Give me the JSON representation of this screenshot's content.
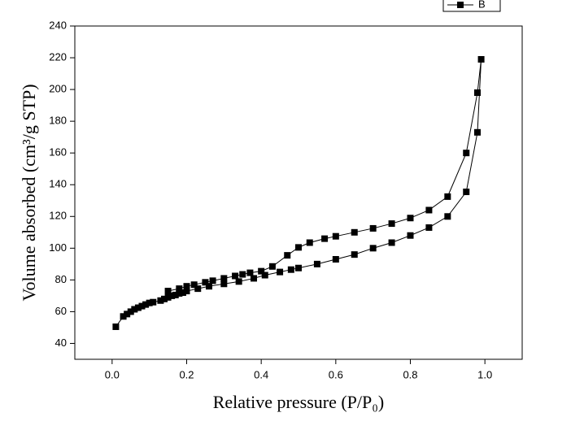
{
  "chart_data": {
    "type": "line",
    "x_label": "Relative pressure (P/P₀)",
    "y_label": "Volume absorbed (cm³/g STP)",
    "xlim": [
      -0.1,
      1.1
    ],
    "ylim": [
      30,
      240
    ],
    "xticks": [
      {
        "value": 0,
        "label": "0.0"
      },
      0.2,
      0.4,
      0.6,
      0.8,
      {
        "value": 1,
        "label": "1.0"
      }
    ],
    "yticks": [
      40,
      60,
      80,
      100,
      120,
      140,
      160,
      180,
      200,
      220,
      240
    ],
    "legend": "top-right",
    "series": [
      {
        "name": "B",
        "color": "#000000",
        "x": [
          0.01,
          0.03,
          0.04,
          0.05,
          0.06,
          0.07,
          0.08,
          0.09,
          0.1,
          0.11,
          0.13,
          0.14,
          0.15,
          0.16,
          0.17,
          0.18,
          0.19,
          0.2,
          0.23,
          0.26,
          0.3,
          0.34,
          0.38,
          0.41,
          0.45,
          0.48,
          0.5,
          0.55,
          0.6,
          0.65,
          0.7,
          0.75,
          0.8,
          0.85,
          0.9,
          0.95,
          0.98,
          0.99,
          0.98,
          0.95,
          0.9,
          0.85,
          0.8,
          0.75,
          0.7,
          0.65,
          0.6,
          0.57,
          0.53,
          0.5,
          0.47,
          0.43,
          0.4,
          0.37,
          0.35,
          0.33,
          0.3,
          0.27,
          0.25,
          0.22,
          0.2,
          0.18,
          0.15
        ],
        "values": [
          50.5,
          57,
          58.5,
          60,
          61.5,
          62.5,
          63.5,
          64.5,
          65.5,
          66,
          67,
          68,
          69,
          70,
          70.5,
          71.5,
          72,
          73,
          74.5,
          76,
          77.5,
          79,
          81,
          83,
          85,
          86.5,
          87.5,
          90,
          93,
          96,
          100,
          103.5,
          108,
          113,
          120,
          135.5,
          173,
          219,
          198,
          160,
          132.5,
          124,
          119,
          115.5,
          112.5,
          110,
          107.5,
          106,
          103.5,
          100.5,
          95.5,
          88.5,
          85.5,
          84.5,
          83.5,
          82.5,
          81,
          79.5,
          78.5,
          77,
          76,
          74.5,
          73
        ]
      }
    ]
  }
}
